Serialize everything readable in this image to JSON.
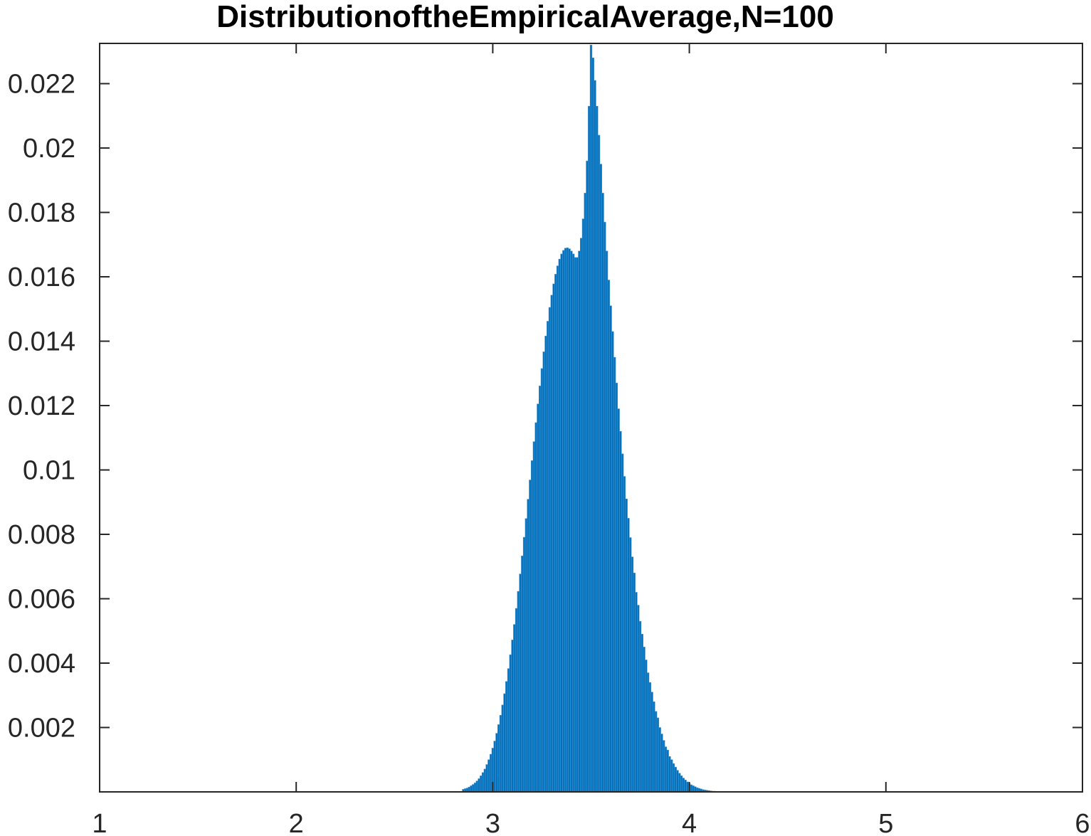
{
  "chart_data": {
    "type": "bar",
    "title": "DistributionoftheEmpiricalAverage,N=100",
    "xlabel": "",
    "ylabel": "",
    "xlim": [
      1,
      6
    ],
    "ylim": [
      0,
      0.02325
    ],
    "xticks": [
      1,
      2,
      3,
      4,
      5,
      6
    ],
    "xtick_labels": [
      "1",
      "2",
      "3",
      "4",
      "5",
      "6"
    ],
    "yticks": [
      0.002,
      0.004,
      0.006,
      0.008,
      0.01,
      0.012,
      0.014,
      0.016,
      0.018,
      0.02,
      0.022
    ],
    "ytick_labels": [
      "0.002",
      "0.004",
      "0.006",
      "0.008",
      "0.01",
      "0.012",
      "0.014",
      "0.016",
      "0.018",
      "0.02",
      "0.022"
    ],
    "grid": false,
    "box": true,
    "bar_color": "#0072BD",
    "edge_color": "#4d94d0",
    "x": [
      2.85,
      2.86,
      2.87,
      2.88,
      2.89,
      2.9,
      2.91,
      2.92,
      2.93,
      2.94,
      2.95,
      2.96,
      2.97,
      2.98,
      2.99,
      3.0,
      3.01,
      3.02,
      3.03,
      3.04,
      3.05,
      3.06,
      3.07,
      3.08,
      3.09,
      3.1,
      3.11,
      3.12,
      3.13,
      3.14,
      3.15,
      3.16,
      3.17,
      3.18,
      3.19,
      3.2,
      3.21,
      3.22,
      3.23,
      3.24,
      3.25,
      3.26,
      3.27,
      3.28,
      3.29,
      3.3,
      3.31,
      3.32,
      3.33,
      3.34,
      3.35,
      3.36,
      3.37,
      3.38,
      3.39,
      3.4,
      3.41,
      3.42,
      3.43,
      3.44,
      3.45,
      3.46,
      3.47,
      3.48,
      3.49,
      3.5,
      3.51,
      3.52,
      3.53,
      3.54,
      3.55,
      3.56,
      3.57,
      3.58,
      3.59,
      3.6,
      3.61,
      3.62,
      3.63,
      3.64,
      3.65,
      3.66,
      3.67,
      3.68,
      3.69,
      3.7,
      3.71,
      3.72,
      3.73,
      3.74,
      3.75,
      3.76,
      3.77,
      3.78,
      3.79,
      3.8,
      3.81,
      3.82,
      3.83,
      3.84,
      3.85,
      3.86,
      3.87,
      3.88,
      3.89,
      3.9,
      3.91,
      3.92,
      3.93,
      3.94,
      3.95,
      3.96,
      3.97,
      3.98,
      3.99,
      4.0,
      4.01,
      4.02,
      4.03,
      4.04,
      4.05,
      4.06,
      4.07,
      4.08,
      4.09,
      4.1,
      4.11,
      4.12,
      4.13,
      4.14,
      4.15
    ],
    "values": [
      8e-05,
      0.0001,
      0.00012,
      0.00015,
      0.00019,
      0.00023,
      0.00028,
      0.00034,
      0.00041,
      0.0005,
      0.0006,
      0.00071,
      0.00085,
      0.001,
      0.00117,
      0.00136,
      0.00158,
      0.00182,
      0.00209,
      0.00238,
      0.0027,
      0.00305,
      0.00343,
      0.00383,
      0.00426,
      0.00472,
      0.0052,
      0.0057,
      0.00623,
      0.00677,
      0.00733,
      0.00791,
      0.00849,
      0.00909,
      0.00969,
      0.01029,
      0.01088,
      0.01147,
      0.01205,
      0.01261,
      0.01315,
      0.01367,
      0.01416,
      0.01462,
      0.01505,
      0.01543,
      0.01578,
      0.01608,
      0.01634,
      0.01655,
      0.01671,
      0.01682,
      0.01689,
      0.0169,
      0.01687,
      0.0168,
      0.01671,
      0.0166,
      0.0166,
      0.0168,
      0.0172,
      0.0178,
      0.0186,
      0.0196,
      0.0213,
      0.0232,
      0.0228,
      0.0221,
      0.0213,
      0.0204,
      0.0195,
      0.0186,
      0.0177,
      0.0168,
      0.0159,
      0.0151,
      0.0143,
      0.0135,
      0.0127,
      0.0119,
      0.0112,
      0.0105,
      0.0098,
      0.0091,
      0.0085,
      0.0079,
      0.0073,
      0.0068,
      0.0062,
      0.0058,
      0.0053,
      0.0049,
      0.0045,
      0.0041,
      0.0037,
      0.0034,
      0.0031,
      0.0028,
      0.0025,
      0.0023,
      0.002,
      0.0018,
      0.0016,
      0.0014,
      0.0013,
      0.0011,
      0.001,
      0.00088,
      0.00077,
      0.00067,
      0.00058,
      0.0005,
      0.00043,
      0.00037,
      0.00031,
      0.00026,
      0.00022,
      0.00019,
      0.00016,
      0.00013,
      0.00011,
      9e-05,
      7e-05,
      6e-05,
      5e-05,
      4e-05,
      3e-05,
      2e-05,
      2e-05,
      1e-05,
      1e-05
    ]
  }
}
